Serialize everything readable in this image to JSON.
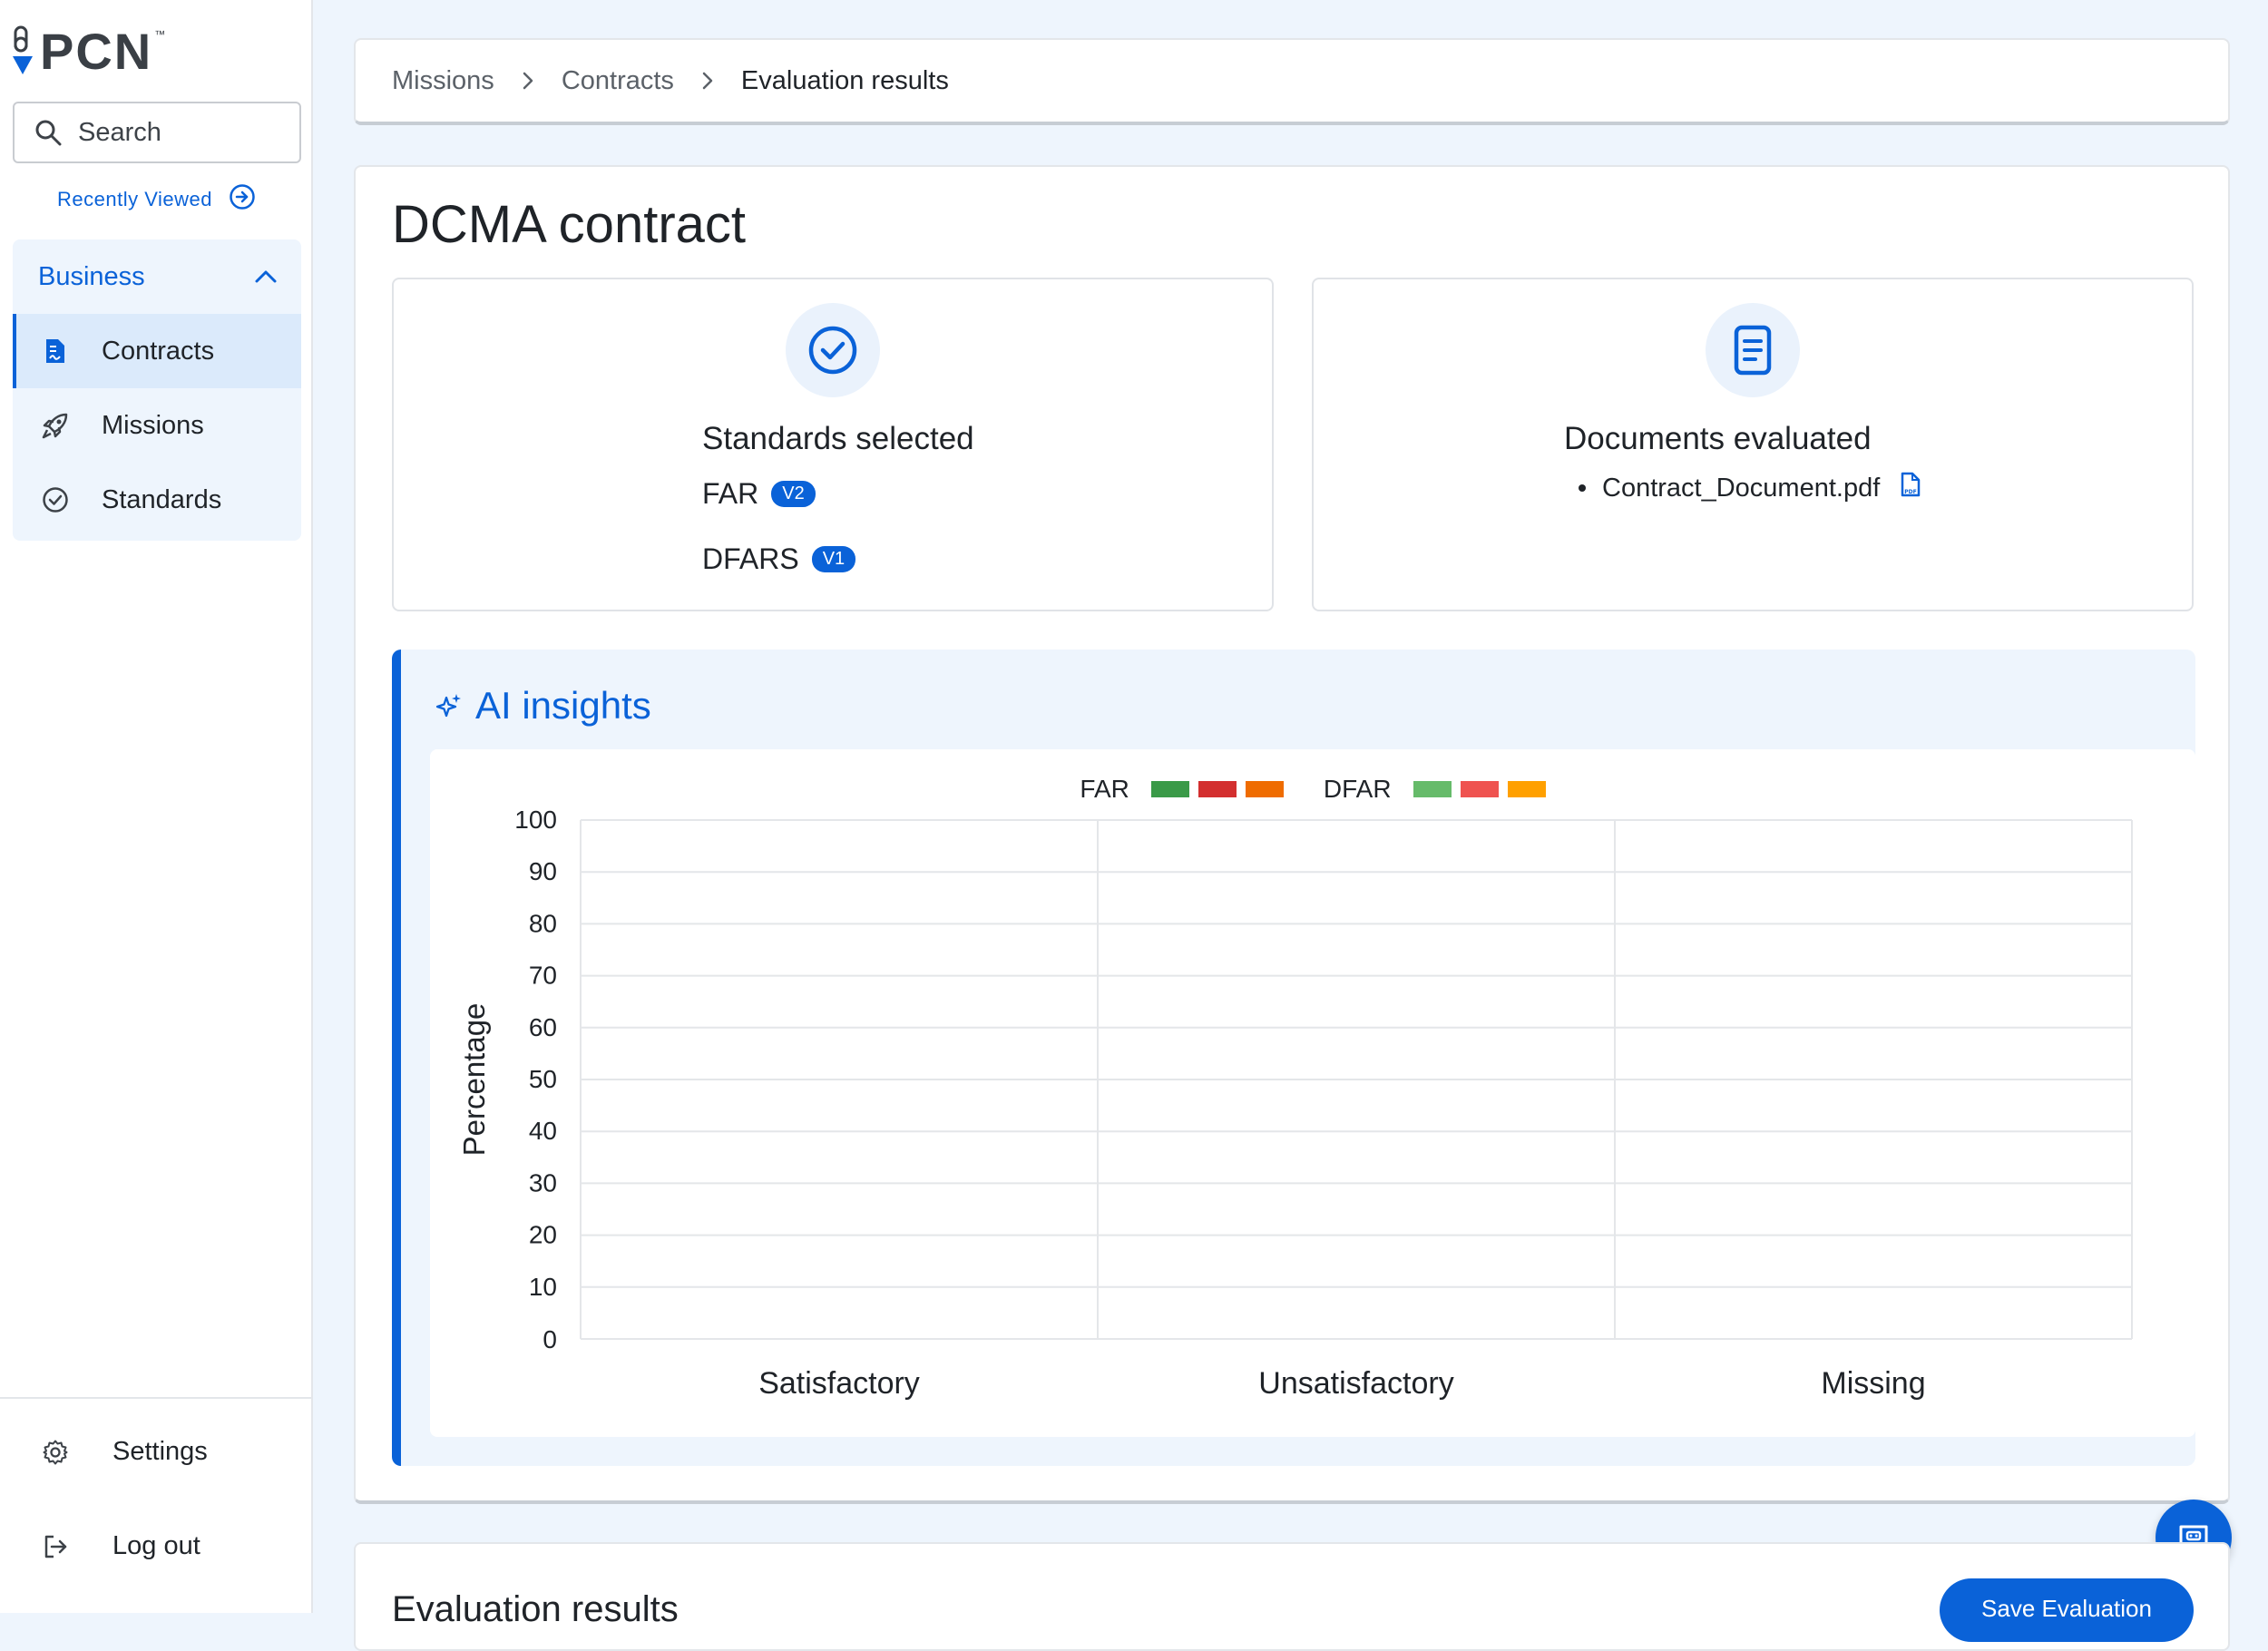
{
  "app": {
    "logo_text": "PCN",
    "logo_tm": "™"
  },
  "sidebar": {
    "search_placeholder": "Search",
    "recently_viewed": "Recently Viewed",
    "group_label": "Business",
    "items": [
      {
        "label": "Contracts",
        "icon": "contract-doc-icon",
        "active": true
      },
      {
        "label": "Missions",
        "icon": "rocket-icon",
        "active": false
      },
      {
        "label": "Standards",
        "icon": "check-circle-icon",
        "active": false
      }
    ],
    "settings": "Settings",
    "logout": "Log out"
  },
  "breadcrumb": [
    "Missions",
    "Contracts",
    "Evaluation results"
  ],
  "page": {
    "title": "DCMA contract",
    "standards_card": {
      "title": "Standards selected",
      "items": [
        {
          "name": "FAR",
          "version": "V2"
        },
        {
          "name": "DFARS",
          "version": "V1"
        }
      ]
    },
    "documents_card": {
      "title": "Documents evaluated",
      "files": [
        "Contract_Document.pdf"
      ]
    },
    "ai_insights": {
      "title": "AI insights"
    },
    "evaluation": {
      "title": "Evaluation results",
      "save_label": "Save Evaluation"
    }
  },
  "colors": {
    "accent": "#0a62d8",
    "page_bg": "#eef5fd"
  },
  "chart_data": {
    "type": "bar",
    "categories": [
      "Satisfactory",
      "Unsatisfactory",
      "Missing"
    ],
    "ylabel": "Percentage",
    "xlabel": "",
    "ylim": [
      0,
      100
    ],
    "yticks": [
      0,
      10,
      20,
      30,
      40,
      50,
      60,
      70,
      80,
      90,
      100
    ],
    "grid": true,
    "legend_position": "top-center",
    "legend": [
      {
        "group": "FAR",
        "colors": [
          "#3a9a48",
          "#d32f2f",
          "#ef6c00"
        ]
      },
      {
        "group": "DFAR",
        "colors": [
          "#66bb6a",
          "#ef5350",
          "#ffa000"
        ]
      }
    ],
    "series": []
  }
}
